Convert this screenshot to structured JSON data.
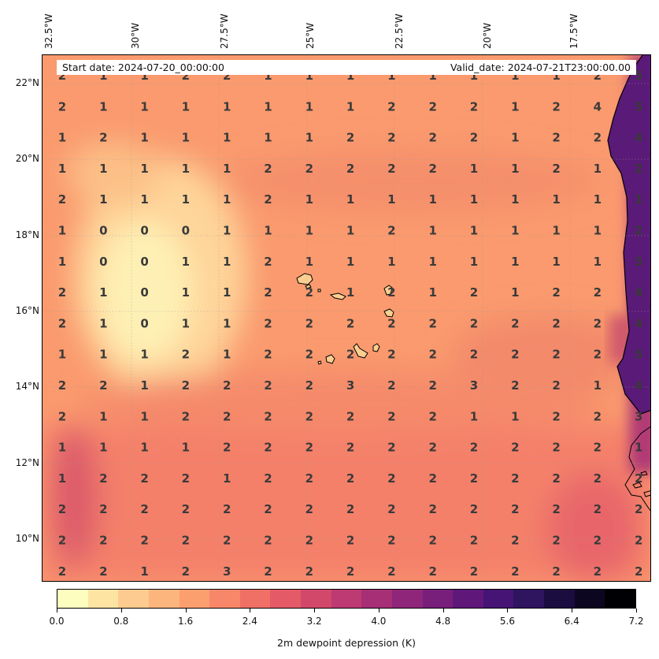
{
  "map": {
    "start_date": "Start date: 2024-07-20_00:00:00",
    "valid_date": "Valid_date: 2024-07-21T23:00:00.00",
    "lon_labels": [
      "32.5°W",
      "30°W",
      "27.5°W",
      "25°W",
      "22.5°W",
      "20°W",
      "17.5°W"
    ],
    "lat_labels": [
      "22°N",
      "20°N",
      "18°N",
      "16°N",
      "14°N",
      "12°N",
      "10°N"
    ],
    "grid_values": [
      [
        2,
        1,
        1,
        2,
        2,
        1,
        1,
        1,
        1,
        1,
        1,
        1,
        1,
        2,
        5
      ],
      [
        2,
        1,
        1,
        1,
        1,
        1,
        1,
        1,
        2,
        2,
        2,
        1,
        2,
        4,
        5
      ],
      [
        1,
        2,
        1,
        1,
        1,
        1,
        1,
        2,
        2,
        2,
        2,
        1,
        2,
        2,
        4
      ],
      [
        1,
        1,
        1,
        1,
        1,
        2,
        2,
        2,
        2,
        2,
        1,
        1,
        2,
        1,
        2
      ],
      [
        2,
        1,
        1,
        1,
        1,
        2,
        1,
        1,
        1,
        1,
        1,
        1,
        1,
        1,
        1
      ],
      [
        1,
        0,
        0,
        0,
        1,
        1,
        1,
        1,
        2,
        1,
        1,
        1,
        1,
        1,
        2
      ],
      [
        1,
        0,
        0,
        1,
        1,
        2,
        1,
        1,
        1,
        1,
        1,
        1,
        1,
        1,
        3
      ],
      [
        2,
        1,
        0,
        1,
        1,
        2,
        2,
        1,
        2,
        1,
        2,
        1,
        2,
        2,
        4
      ],
      [
        2,
        1,
        0,
        1,
        1,
        2,
        2,
        2,
        2,
        2,
        2,
        2,
        2,
        2,
        4
      ],
      [
        1,
        1,
        1,
        2,
        1,
        2,
        2,
        2,
        2,
        2,
        2,
        2,
        2,
        2,
        5
      ],
      [
        2,
        2,
        1,
        2,
        2,
        2,
        2,
        3,
        2,
        2,
        3,
        2,
        2,
        1,
        4
      ],
      [
        2,
        1,
        1,
        2,
        2,
        2,
        2,
        2,
        2,
        2,
        1,
        1,
        2,
        2,
        3
      ],
      [
        1,
        1,
        1,
        1,
        2,
        2,
        2,
        2,
        2,
        2,
        2,
        2,
        2,
        2,
        1
      ],
      [
        1,
        2,
        2,
        2,
        1,
        2,
        2,
        2,
        2,
        2,
        2,
        2,
        2,
        2,
        2
      ],
      [
        2,
        2,
        2,
        2,
        2,
        2,
        2,
        2,
        2,
        2,
        2,
        2,
        2,
        2,
        2
      ],
      [
        2,
        2,
        2,
        2,
        2,
        2,
        2,
        2,
        2,
        2,
        2,
        2,
        2,
        2,
        2
      ],
      [
        2,
        2,
        1,
        2,
        3,
        2,
        2,
        2,
        2,
        2,
        2,
        2,
        2,
        2,
        2
      ]
    ]
  },
  "colorbar": {
    "title": "2m dewpoint depression (K)",
    "tick_labels": [
      "0.0",
      "0.8",
      "1.6",
      "2.4",
      "3.2",
      "4.0",
      "4.8",
      "5.6",
      "6.4",
      "7.2"
    ],
    "colors": [
      "#fcfdbf",
      "#fee4a3",
      "#fdcb8f",
      "#fcb57d",
      "#fb9f6f",
      "#f8876a",
      "#f07066",
      "#e45a67",
      "#d2486b",
      "#bd3a72",
      "#a62f76",
      "#8f2679",
      "#771f7b",
      "#5f187a",
      "#461474",
      "#2f1460",
      "#1c0d40",
      "#0d0620",
      "#000004"
    ]
  }
}
